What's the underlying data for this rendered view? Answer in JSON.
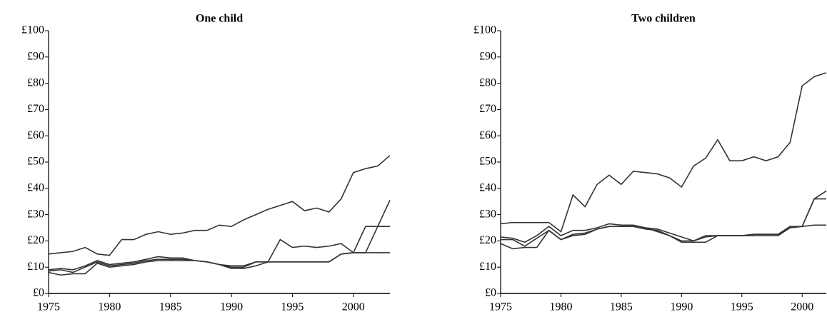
{
  "chart_data": [
    {
      "type": "line",
      "title": "One child",
      "x": [
        1975,
        1976,
        1977,
        1978,
        1979,
        1980,
        1981,
        1982,
        1983,
        1984,
        1985,
        1986,
        1987,
        1988,
        1989,
        1990,
        1991,
        1992,
        1993,
        1994,
        1995,
        1996,
        1997,
        1998,
        1999,
        2000,
        2001,
        2002,
        2003
      ],
      "series": [
        {
          "color": "#333333",
          "values": [
            15,
            15.5,
            16,
            17.5,
            15,
            14.5,
            20.5,
            20.5,
            22.5,
            23.5,
            22.5,
            23,
            24,
            24,
            26,
            25.5,
            28,
            30,
            32,
            33.5,
            35,
            31.5,
            32.5,
            31,
            36,
            46,
            47.5,
            48.5,
            52.5
          ]
        },
        {
          "color": "#333333",
          "values": [
            8,
            7,
            7.5,
            7.5,
            11.5,
            10,
            10.5,
            11,
            12,
            12.5,
            12.5,
            12.5,
            12.5,
            12,
            11,
            9.5,
            9.5,
            10.5,
            12,
            20.5,
            17.5,
            18,
            17.5,
            18,
            19,
            15.5,
            15.5,
            15.5,
            15.5
          ]
        },
        {
          "color": "#333333",
          "values": [
            9,
            9.5,
            9,
            10.5,
            12.5,
            11,
            11.5,
            12,
            13,
            14,
            13.5,
            13.5,
            12.5,
            12,
            11,
            10.5,
            10.5,
            12,
            12,
            12,
            12,
            12,
            12,
            12,
            15,
            15.5,
            25.5,
            25.5,
            25.5
          ]
        },
        {
          "color": "#333333",
          "values": [
            8.5,
            9,
            8,
            10,
            12,
            10.5,
            11,
            11.5,
            12.5,
            13,
            13,
            13,
            12.5,
            12,
            11,
            10,
            10,
            12,
            12,
            12,
            12,
            12,
            12,
            12,
            15,
            15.5,
            15.5,
            25.5,
            35.5
          ]
        }
      ],
      "xlim": [
        1975,
        2003
      ],
      "ylim": [
        0,
        100
      ],
      "xticks": [
        1975,
        1980,
        1985,
        1990,
        1995,
        2000
      ],
      "yticks": [
        {
          "value": 0,
          "label": "£0"
        },
        {
          "value": 10,
          "label": "£10"
        },
        {
          "value": 20,
          "label": "£20"
        },
        {
          "value": 30,
          "label": "£30"
        },
        {
          "value": 40,
          "label": "£40"
        },
        {
          "value": 50,
          "label": "£50"
        },
        {
          "value": 60,
          "label": "£60"
        },
        {
          "value": 70,
          "label": "£70"
        },
        {
          "value": 80,
          "label": "£80"
        },
        {
          "value": 90,
          "label": "£90"
        },
        {
          "value": 100,
          "label": "£100"
        }
      ]
    },
    {
      "type": "line",
      "title": "Two children",
      "x": [
        1975,
        1976,
        1977,
        1978,
        1979,
        1980,
        1981,
        1982,
        1983,
        1984,
        1985,
        1986,
        1987,
        1988,
        1989,
        1990,
        1991,
        1992,
        1993,
        1994,
        1995,
        1996,
        1997,
        1998,
        1999,
        2000,
        2001,
        2002
      ],
      "series": [
        {
          "color": "#333333",
          "values": [
            26.5,
            27,
            27,
            27,
            27,
            23.5,
            37.5,
            33,
            41.5,
            45,
            41.5,
            46.5,
            46,
            45.5,
            44,
            40.5,
            48.5,
            51.5,
            58.5,
            50.5,
            50.5,
            52,
            50.5,
            52,
            57.5,
            79,
            82.5,
            84
          ]
        },
        {
          "color": "#333333",
          "values": [
            21.5,
            21,
            19.5,
            22,
            25.5,
            22,
            24,
            24,
            25,
            26.5,
            26,
            26,
            25,
            24.5,
            23,
            21.5,
            20,
            22,
            22,
            22,
            22,
            22.5,
            22.5,
            22.5,
            25.5,
            25.5,
            36,
            39
          ]
        },
        {
          "color": "#333333",
          "values": [
            19,
            17,
            17.5,
            17.5,
            24,
            20.5,
            22,
            22.5,
            24.5,
            25.5,
            25.5,
            25.5,
            25,
            23.5,
            22,
            19.5,
            19.5,
            19.5,
            22,
            22,
            22,
            22,
            22,
            22,
            25,
            25.5,
            36,
            36
          ]
        },
        {
          "color": "#333333",
          "values": [
            20.5,
            20.5,
            18,
            21,
            24,
            20.5,
            22.5,
            23,
            24.5,
            25.5,
            25.5,
            25.5,
            24.5,
            24,
            22,
            20,
            20,
            21.5,
            22,
            22,
            22,
            22.5,
            22.5,
            22.5,
            25,
            25.5,
            26,
            26
          ]
        }
      ],
      "xlim": [
        1975,
        2002
      ],
      "ylim": [
        0,
        100
      ],
      "xticks": [
        1975,
        1980,
        1985,
        1990,
        1995,
        2000
      ],
      "yticks": [
        {
          "value": 0,
          "label": "£0"
        },
        {
          "value": 10,
          "label": "£10"
        },
        {
          "value": 20,
          "label": "£20"
        },
        {
          "value": 30,
          "label": "£30"
        },
        {
          "value": 40,
          "label": "£40"
        },
        {
          "value": 50,
          "label": "£50"
        },
        {
          "value": 60,
          "label": "£60"
        },
        {
          "value": 70,
          "label": "£70"
        },
        {
          "value": 80,
          "label": "£80"
        },
        {
          "value": 90,
          "label": "£90"
        },
        {
          "value": 100,
          "label": "£100"
        }
      ]
    }
  ]
}
